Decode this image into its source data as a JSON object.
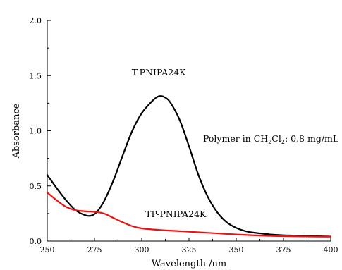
{
  "chart_data": {
    "type": "line",
    "xlabel": "Wavelength /nm",
    "ylabel": "Absorbance",
    "xlim": [
      250,
      400
    ],
    "ylim": [
      0.0,
      2.0
    ],
    "x_ticks": [
      250,
      275,
      300,
      325,
      350,
      375,
      400
    ],
    "x_tick_labels": [
      "250",
      "275",
      "300",
      "325",
      "350",
      "375",
      "400"
    ],
    "y_ticks": [
      0.0,
      0.5,
      1.0,
      1.5,
      2.0
    ],
    "y_tick_labels": [
      "0.0",
      "0.5",
      "1.0",
      "1.5",
      "2.0"
    ],
    "grid": false,
    "annotations": {
      "t_label": "T-PNIPA24K",
      "tp_label": "TP-PNIPA24K",
      "cond_prefix": "Polymer in CH",
      "cond_sub1": "2",
      "cond_mid": "Cl",
      "cond_sub2": "2",
      "cond_suffix": ": 0.8 mg/mL"
    },
    "series": [
      {
        "color": "#000000",
        "points": [
          [
            250,
            0.6
          ],
          [
            255,
            0.48
          ],
          [
            260,
            0.37
          ],
          [
            265,
            0.28
          ],
          [
            270,
            0.235
          ],
          [
            273,
            0.23
          ],
          [
            276,
            0.26
          ],
          [
            280,
            0.36
          ],
          [
            285,
            0.55
          ],
          [
            290,
            0.78
          ],
          [
            295,
            1.0
          ],
          [
            300,
            1.16
          ],
          [
            305,
            1.26
          ],
          [
            308,
            1.305
          ],
          [
            310,
            1.315
          ],
          [
            312,
            1.305
          ],
          [
            315,
            1.26
          ],
          [
            320,
            1.1
          ],
          [
            325,
            0.86
          ],
          [
            330,
            0.6
          ],
          [
            335,
            0.4
          ],
          [
            340,
            0.26
          ],
          [
            345,
            0.17
          ],
          [
            350,
            0.12
          ],
          [
            355,
            0.09
          ],
          [
            360,
            0.075
          ],
          [
            370,
            0.058
          ],
          [
            380,
            0.05
          ],
          [
            390,
            0.045
          ],
          [
            400,
            0.042
          ]
        ]
      },
      {
        "color": "#ee1111",
        "points": [
          [
            250,
            0.44
          ],
          [
            255,
            0.37
          ],
          [
            260,
            0.31
          ],
          [
            265,
            0.28
          ],
          [
            270,
            0.27
          ],
          [
            275,
            0.265
          ],
          [
            280,
            0.25
          ],
          [
            285,
            0.21
          ],
          [
            290,
            0.17
          ],
          [
            295,
            0.135
          ],
          [
            300,
            0.115
          ],
          [
            310,
            0.1
          ],
          [
            320,
            0.09
          ],
          [
            330,
            0.08
          ],
          [
            340,
            0.07
          ],
          [
            350,
            0.06
          ],
          [
            360,
            0.052
          ],
          [
            370,
            0.046
          ],
          [
            380,
            0.043
          ],
          [
            390,
            0.041
          ],
          [
            400,
            0.04
          ]
        ]
      }
    ]
  }
}
